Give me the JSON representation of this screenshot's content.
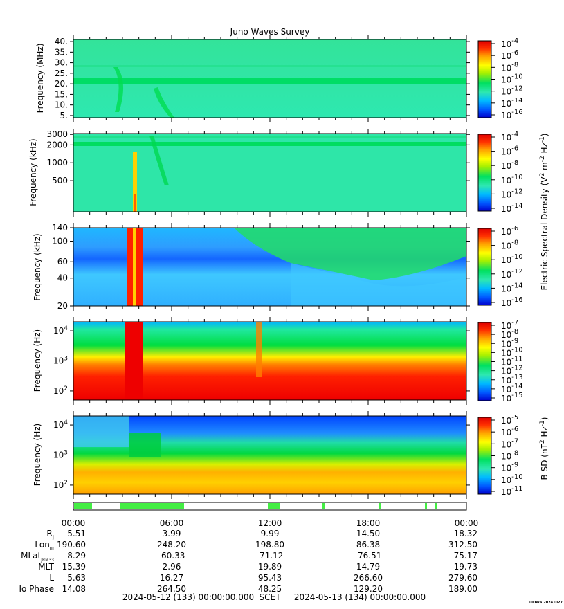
{
  "title": "Juno Waves Survey",
  "credit": "UIOWA 20241027",
  "colors": {
    "spec_stops": [
      "#0000cc",
      "#0066ff",
      "#00ccff",
      "#2ee8a8",
      "#00e060",
      "#a0f000",
      "#ffff00",
      "#ffa000",
      "#ff3000",
      "#ee0000"
    ]
  },
  "chart_data": [
    {
      "type": "heatmap",
      "name": "panel-1",
      "ylabel": "Frequency (MHz)",
      "yscale": "linear",
      "ylim": [
        4,
        41
      ],
      "yticks": [
        "40.",
        "35.",
        "30.",
        "25.",
        "20.",
        "15.",
        "10.",
        "5."
      ],
      "ytick_values": [
        40,
        35,
        30,
        25,
        20,
        15,
        10,
        5
      ],
      "colorbar": {
        "ticks": [
          [
            "10",
            "-4"
          ],
          [
            "10",
            "-6"
          ],
          [
            "10",
            "-8"
          ],
          [
            "10",
            "-10"
          ],
          [
            "10",
            "-12"
          ],
          [
            "10",
            "-14"
          ],
          [
            "10",
            "-16"
          ]
        ]
      }
    },
    {
      "type": "heatmap",
      "name": "panel-2",
      "ylabel": "Frequency (kHz)",
      "yscale": "log",
      "ylim": [
        150,
        3100
      ],
      "yticks": [
        "3000",
        "2000",
        "1000",
        "500"
      ],
      "ytick_values": [
        3000,
        2000,
        1000,
        500
      ],
      "colorbar": {
        "ticks": [
          [
            "10",
            "-4"
          ],
          [
            "10",
            "-6"
          ],
          [
            "10",
            "-8"
          ],
          [
            "10",
            "-10"
          ],
          [
            "10",
            "-12"
          ],
          [
            "10",
            "-14"
          ]
        ]
      }
    },
    {
      "type": "heatmap",
      "name": "panel-3",
      "ylabel": "Frequency (kHz)",
      "yscale": "log",
      "ylim": [
        20,
        140
      ],
      "yticks": [
        "140",
        "100",
        "60",
        "40",
        "20"
      ],
      "ytick_values": [
        140,
        100,
        60,
        40,
        20
      ],
      "colorbar": {
        "ticks": [
          [
            "10",
            "-6"
          ],
          [
            "10",
            "-8"
          ],
          [
            "10",
            "-10"
          ],
          [
            "10",
            "-12"
          ],
          [
            "10",
            "-14"
          ],
          [
            "10",
            "-16"
          ]
        ]
      }
    },
    {
      "type": "heatmap",
      "name": "panel-4",
      "ylabel": "Frequency (Hz)",
      "yscale": "log",
      "ylim": [
        50,
        20000
      ],
      "yticks": [
        [
          "10",
          "4"
        ],
        [
          "10",
          "3"
        ],
        [
          "10",
          "2"
        ]
      ],
      "ytick_values": [
        10000,
        1000,
        100
      ],
      "colorbar": {
        "ticks": [
          [
            "10",
            "-7"
          ],
          [
            "10",
            "-8"
          ],
          [
            "10",
            "-9"
          ],
          [
            "10",
            "-10"
          ],
          [
            "10",
            "-11"
          ],
          [
            "10",
            "-12"
          ],
          [
            "10",
            "-13"
          ],
          [
            "10",
            "-14"
          ],
          [
            "10",
            "-15"
          ]
        ]
      }
    },
    {
      "type": "heatmap",
      "name": "panel-5",
      "ylabel": "Frequency (Hz)",
      "yscale": "log",
      "ylim": [
        50,
        20000
      ],
      "yticks": [
        [
          "10",
          "4"
        ],
        [
          "10",
          "3"
        ],
        [
          "10",
          "2"
        ]
      ],
      "ytick_values": [
        10000,
        1000,
        100
      ],
      "colorbar": {
        "ticks": [
          [
            "10",
            "-5"
          ],
          [
            "10",
            "-6"
          ],
          [
            "10",
            "-7"
          ],
          [
            "10",
            "-8"
          ],
          [
            "10",
            "-9"
          ],
          [
            "10",
            "-10"
          ],
          [
            "10",
            "-11"
          ]
        ]
      }
    }
  ],
  "colorbar_labels": {
    "electric": "Electric Spectral Density (V",
    "electric_parts": [
      "Electric Spectral Density (V",
      "2",
      " m",
      "-2",
      " Hz",
      "-1",
      ")"
    ],
    "magnetic_parts": [
      "B SD (nT",
      "2",
      " Hz",
      "-1",
      ")"
    ]
  },
  "time_axis": {
    "ticks": [
      "00:00",
      "06:00",
      "12:00",
      "18:00",
      "00:00"
    ],
    "tick_hours": [
      0,
      6,
      12,
      18,
      24
    ]
  },
  "ephemeris": {
    "labels": [
      {
        "main": "R",
        "sub": "j"
      },
      {
        "main": "Lon",
        "sub": "III"
      },
      {
        "main": "MLat",
        "sub": "JRM33"
      },
      {
        "main": "MLT",
        "sub": ""
      },
      {
        "main": "L",
        "sub": ""
      },
      {
        "main": "Io Phase",
        "sub": ""
      }
    ],
    "rows": [
      [
        "5.51",
        "3.99",
        "9.99",
        "14.50",
        "18.32"
      ],
      [
        "190.60",
        "248.20",
        "198.80",
        "86.38",
        "312.50"
      ],
      [
        "8.29",
        "-60.33",
        "-71.12",
        "-76.51",
        "-75.17"
      ],
      [
        "15.39",
        "2.96",
        "19.89",
        "14.79",
        "19.73"
      ],
      [
        "5.63",
        "16.27",
        "95.43",
        "266.60",
        "279.60"
      ],
      [
        "14.08",
        "264.50",
        "48.25",
        "129.20",
        "189.00"
      ]
    ]
  },
  "footer": {
    "start": "2024-05-12 (133) 00:00:00.000",
    "scet": "SCET",
    "end": "2024-05-13 (134) 00:00:00.000"
  }
}
